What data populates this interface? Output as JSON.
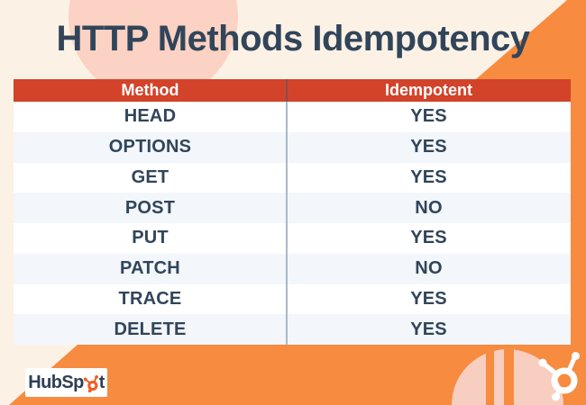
{
  "title": "HTTP Methods Idempotency",
  "chart_data": {
    "type": "table",
    "title": "HTTP Methods Idempotency",
    "columns": [
      "Method",
      "Idempotent"
    ],
    "rows": [
      [
        "HEAD",
        "YES"
      ],
      [
        "OPTIONS",
        "YES"
      ],
      [
        "GET",
        "YES"
      ],
      [
        "POST",
        "NO"
      ],
      [
        "PUT",
        "YES"
      ],
      [
        "PATCH",
        "NO"
      ],
      [
        "TRACE",
        "YES"
      ],
      [
        "DELETE",
        "YES"
      ]
    ]
  },
  "logo": {
    "name": "HubSpot",
    "text_before_sprocket": "HubSp",
    "text_after_sprocket": "t",
    "sprocket_icon": "hubspot-sprocket-icon"
  },
  "decorations": {
    "corner_icon": "hubspot-sprocket-icon"
  },
  "colors": {
    "background_cream": "#FCF1E5",
    "accent_orange": "#F78B40",
    "header_red": "#D2432A",
    "text_navy": "#31455A",
    "row_alt": "#F3F6FA",
    "peach_circle": "#FBD2C3",
    "dome_pink": "#F8CEC0",
    "logo_sprocket_orange": "#F25C21"
  }
}
